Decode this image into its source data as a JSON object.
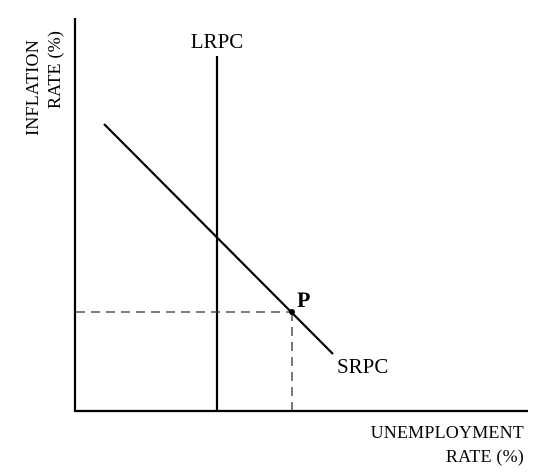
{
  "axes": {
    "y_label_line1": "INFLATION",
    "y_label_line2": "RATE  (%)",
    "x_label_line1": "UNEMPLOYMENT",
    "x_label_line2": "RATE  (%)"
  },
  "curves": {
    "lrpc_label": "LRPC",
    "srpc_label": "SRPC"
  },
  "point": {
    "label": "P"
  },
  "colors": {
    "ink": "#000000",
    "guide": "#333333",
    "background": "#ffffff"
  }
}
